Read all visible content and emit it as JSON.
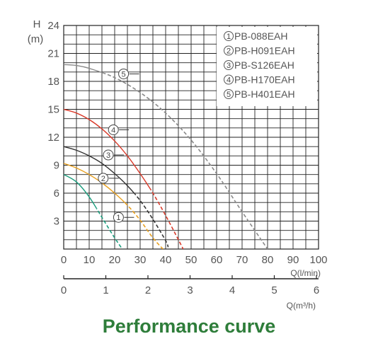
{
  "caption": "Performance curve",
  "chart_data": {
    "type": "line",
    "ylabel_top": "H",
    "ylabel_unit": "(m)",
    "xlabel": "Q(l/min)",
    "x2label": "Q(m³/h)",
    "xlim": [
      0,
      100
    ],
    "ylim": [
      0,
      24
    ],
    "x2lim": [
      0,
      6
    ],
    "y_ticks": [
      3,
      6,
      9,
      12,
      15,
      18,
      21,
      24
    ],
    "x_ticks": [
      0,
      10,
      20,
      30,
      40,
      50,
      60,
      70,
      80,
      90,
      100
    ],
    "x2_ticks": [
      0,
      1,
      2,
      3,
      4,
      5,
      6
    ],
    "grid": true,
    "legend_position": "top-right",
    "legend": [
      {
        "marker": "①",
        "label": "PB-088EAH"
      },
      {
        "marker": "②",
        "label": "PB-H091EAH"
      },
      {
        "marker": "③",
        "label": "PB-S126EAH"
      },
      {
        "marker": "④",
        "label": "PB-H170EAH"
      },
      {
        "marker": "⑤",
        "label": "PB-H401EAH"
      }
    ],
    "series": [
      {
        "marker": "①",
        "color": "#1a9c7c",
        "dashed_from_x": 13,
        "x": [
          0,
          5,
          10,
          15,
          20,
          25
        ],
        "y": [
          8,
          7.2,
          5.6,
          3.4,
          1.2,
          -0.8
        ]
      },
      {
        "marker": "②",
        "color": "#e8a020",
        "dashed_from_x": 24,
        "x": [
          0,
          5,
          10,
          15,
          20,
          25,
          30,
          35,
          40
        ],
        "y": [
          9.2,
          8.7,
          8.0,
          7.1,
          6.0,
          4.7,
          3.1,
          1.2,
          -0.3
        ]
      },
      {
        "marker": "③",
        "color": "#333333",
        "dashed_from_x": 28,
        "x": [
          0,
          5,
          10,
          15,
          20,
          25,
          30,
          35,
          40,
          41
        ],
        "y": [
          11,
          10.6,
          10.0,
          9.2,
          8.1,
          6.8,
          5.2,
          3.2,
          0.9,
          0.2
        ]
      },
      {
        "marker": "④",
        "color": "#d93a2a",
        "dashed_from_x": 34,
        "x": [
          0,
          5,
          10,
          15,
          20,
          25,
          30,
          35,
          40,
          45,
          48
        ],
        "y": [
          15,
          14.6,
          13.9,
          12.9,
          11.6,
          10.0,
          8.1,
          6.0,
          3.6,
          1.0,
          -0.6
        ]
      },
      {
        "marker": "⑤",
        "color": "#8a8a8a",
        "dashed_from_x": 16,
        "x": [
          0,
          5,
          10,
          20,
          30,
          40,
          50,
          60,
          70,
          80
        ],
        "y": [
          19.8,
          19.7,
          19.4,
          18.4,
          16.8,
          14.6,
          11.7,
          8.1,
          4.0,
          0
        ]
      }
    ],
    "marker_positions": [
      {
        "marker": "①",
        "x": 21.5,
        "y": 3.4
      },
      {
        "marker": "②",
        "x": 15.5,
        "y": 7.6
      },
      {
        "marker": "③",
        "x": 17.5,
        "y": 10.1
      },
      {
        "marker": "④",
        "x": 19.5,
        "y": 12.8
      },
      {
        "marker": "⑤",
        "x": 23.5,
        "y": 18.8
      }
    ]
  }
}
